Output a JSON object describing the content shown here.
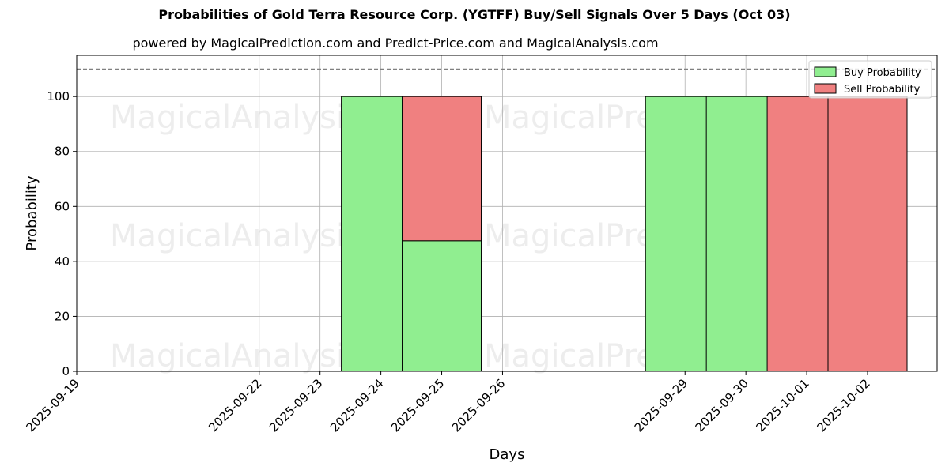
{
  "chart_data": {
    "type": "bar",
    "title": "Probabilities of Gold Terra Resource Corp. (YGTFF) Buy/Sell Signals Over 5 Days (Oct 03)",
    "subtitle": "powered by MagicalPrediction.com and Predict-Price.com and MagicalAnalysis.com",
    "xlabel": "Days",
    "ylabel": "Probability",
    "ylim": [
      0,
      115
    ],
    "yticks": [
      0,
      20,
      40,
      60,
      80,
      100
    ],
    "xticks": [
      "2025-09-19",
      "2025-09-22",
      "2025-09-23",
      "2025-09-24",
      "2025-09-25",
      "2025-09-26",
      "2025-09-29",
      "2025-09-30",
      "2025-10-01",
      "2025-10-02"
    ],
    "categories": [
      "2025-09-24",
      "2025-09-25",
      "2025-09-29",
      "2025-09-30",
      "2025-10-01",
      "2025-10-02"
    ],
    "series": [
      {
        "name": "Buy Probability",
        "color": "#90ee90",
        "values": [
          100,
          47.5,
          100,
          100,
          0,
          0
        ]
      },
      {
        "name": "Sell Probability",
        "color": "#f08080",
        "values": [
          0,
          52.5,
          0,
          0,
          100,
          100
        ]
      }
    ],
    "reference_line": 110,
    "grid": true,
    "legend": "top-right",
    "watermarks": [
      "MagicalAnalysis.com",
      "MagicalPrediction.com"
    ]
  }
}
